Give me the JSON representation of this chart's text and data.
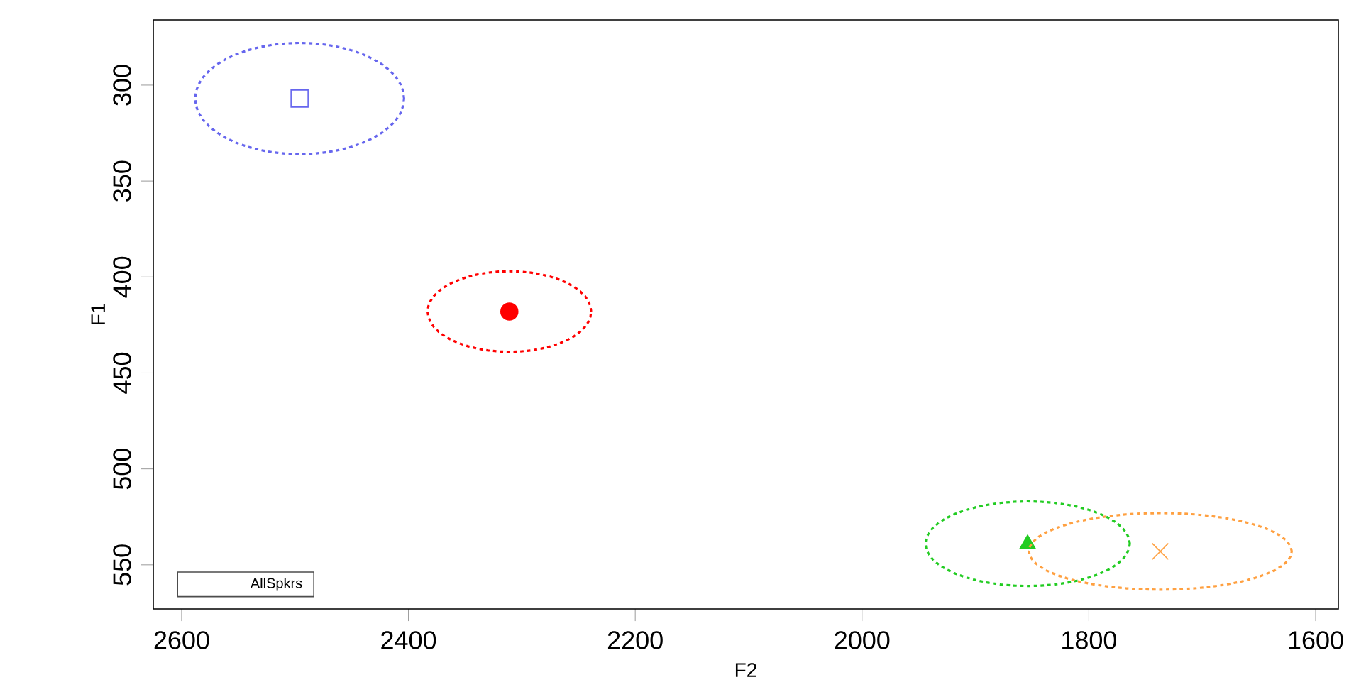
{
  "chart_data": {
    "type": "scatter",
    "xlabel": "F2",
    "ylabel": "F1",
    "legend_title": "AllSpkrs",
    "xlim": [
      2625,
      1580
    ],
    "ylim": [
      573,
      266
    ],
    "xticks": [
      2600,
      2400,
      2200,
      2000,
      1800,
      1600
    ],
    "yticks": [
      300,
      350,
      400,
      450,
      500,
      550
    ],
    "grid": false,
    "series": [
      {
        "marker": "square",
        "color": "#6666ee",
        "x": [
          2496
        ],
        "values": [
          307
        ]
      },
      {
        "marker": "circle",
        "color": "#ff0000",
        "x": [
          2311
        ],
        "values": [
          418
        ]
      },
      {
        "marker": "triangle",
        "color": "#22cc22",
        "x": [
          1854
        ],
        "values": [
          539
        ]
      },
      {
        "marker": "cross",
        "color": "#ffa040",
        "x": [
          1737
        ],
        "values": [
          543
        ]
      }
    ]
  }
}
